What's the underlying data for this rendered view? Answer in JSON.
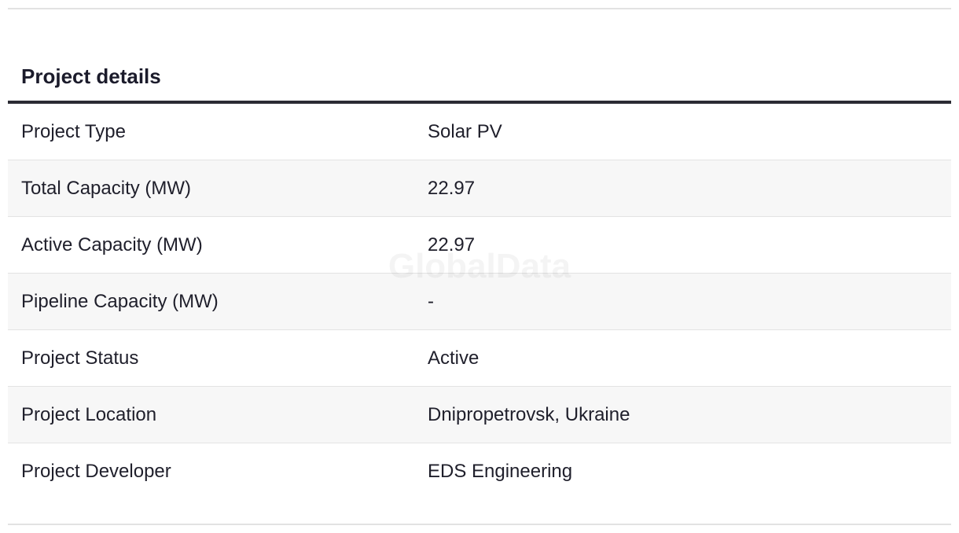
{
  "header": {
    "title": "Project details"
  },
  "watermark": "GlobalData",
  "table": {
    "rows": [
      [
        "Project Type",
        "Solar PV"
      ],
      [
        "Total Capacity (MW)",
        "22.97"
      ],
      [
        "Active Capacity (MW)",
        "22.97"
      ],
      [
        "Pipeline Capacity (MW)",
        "-"
      ],
      [
        "Project Status",
        "Active"
      ],
      [
        "Project Location",
        "Dnipropetrovsk, Ukraine"
      ],
      [
        "Project Developer",
        "EDS Engineering"
      ]
    ]
  }
}
